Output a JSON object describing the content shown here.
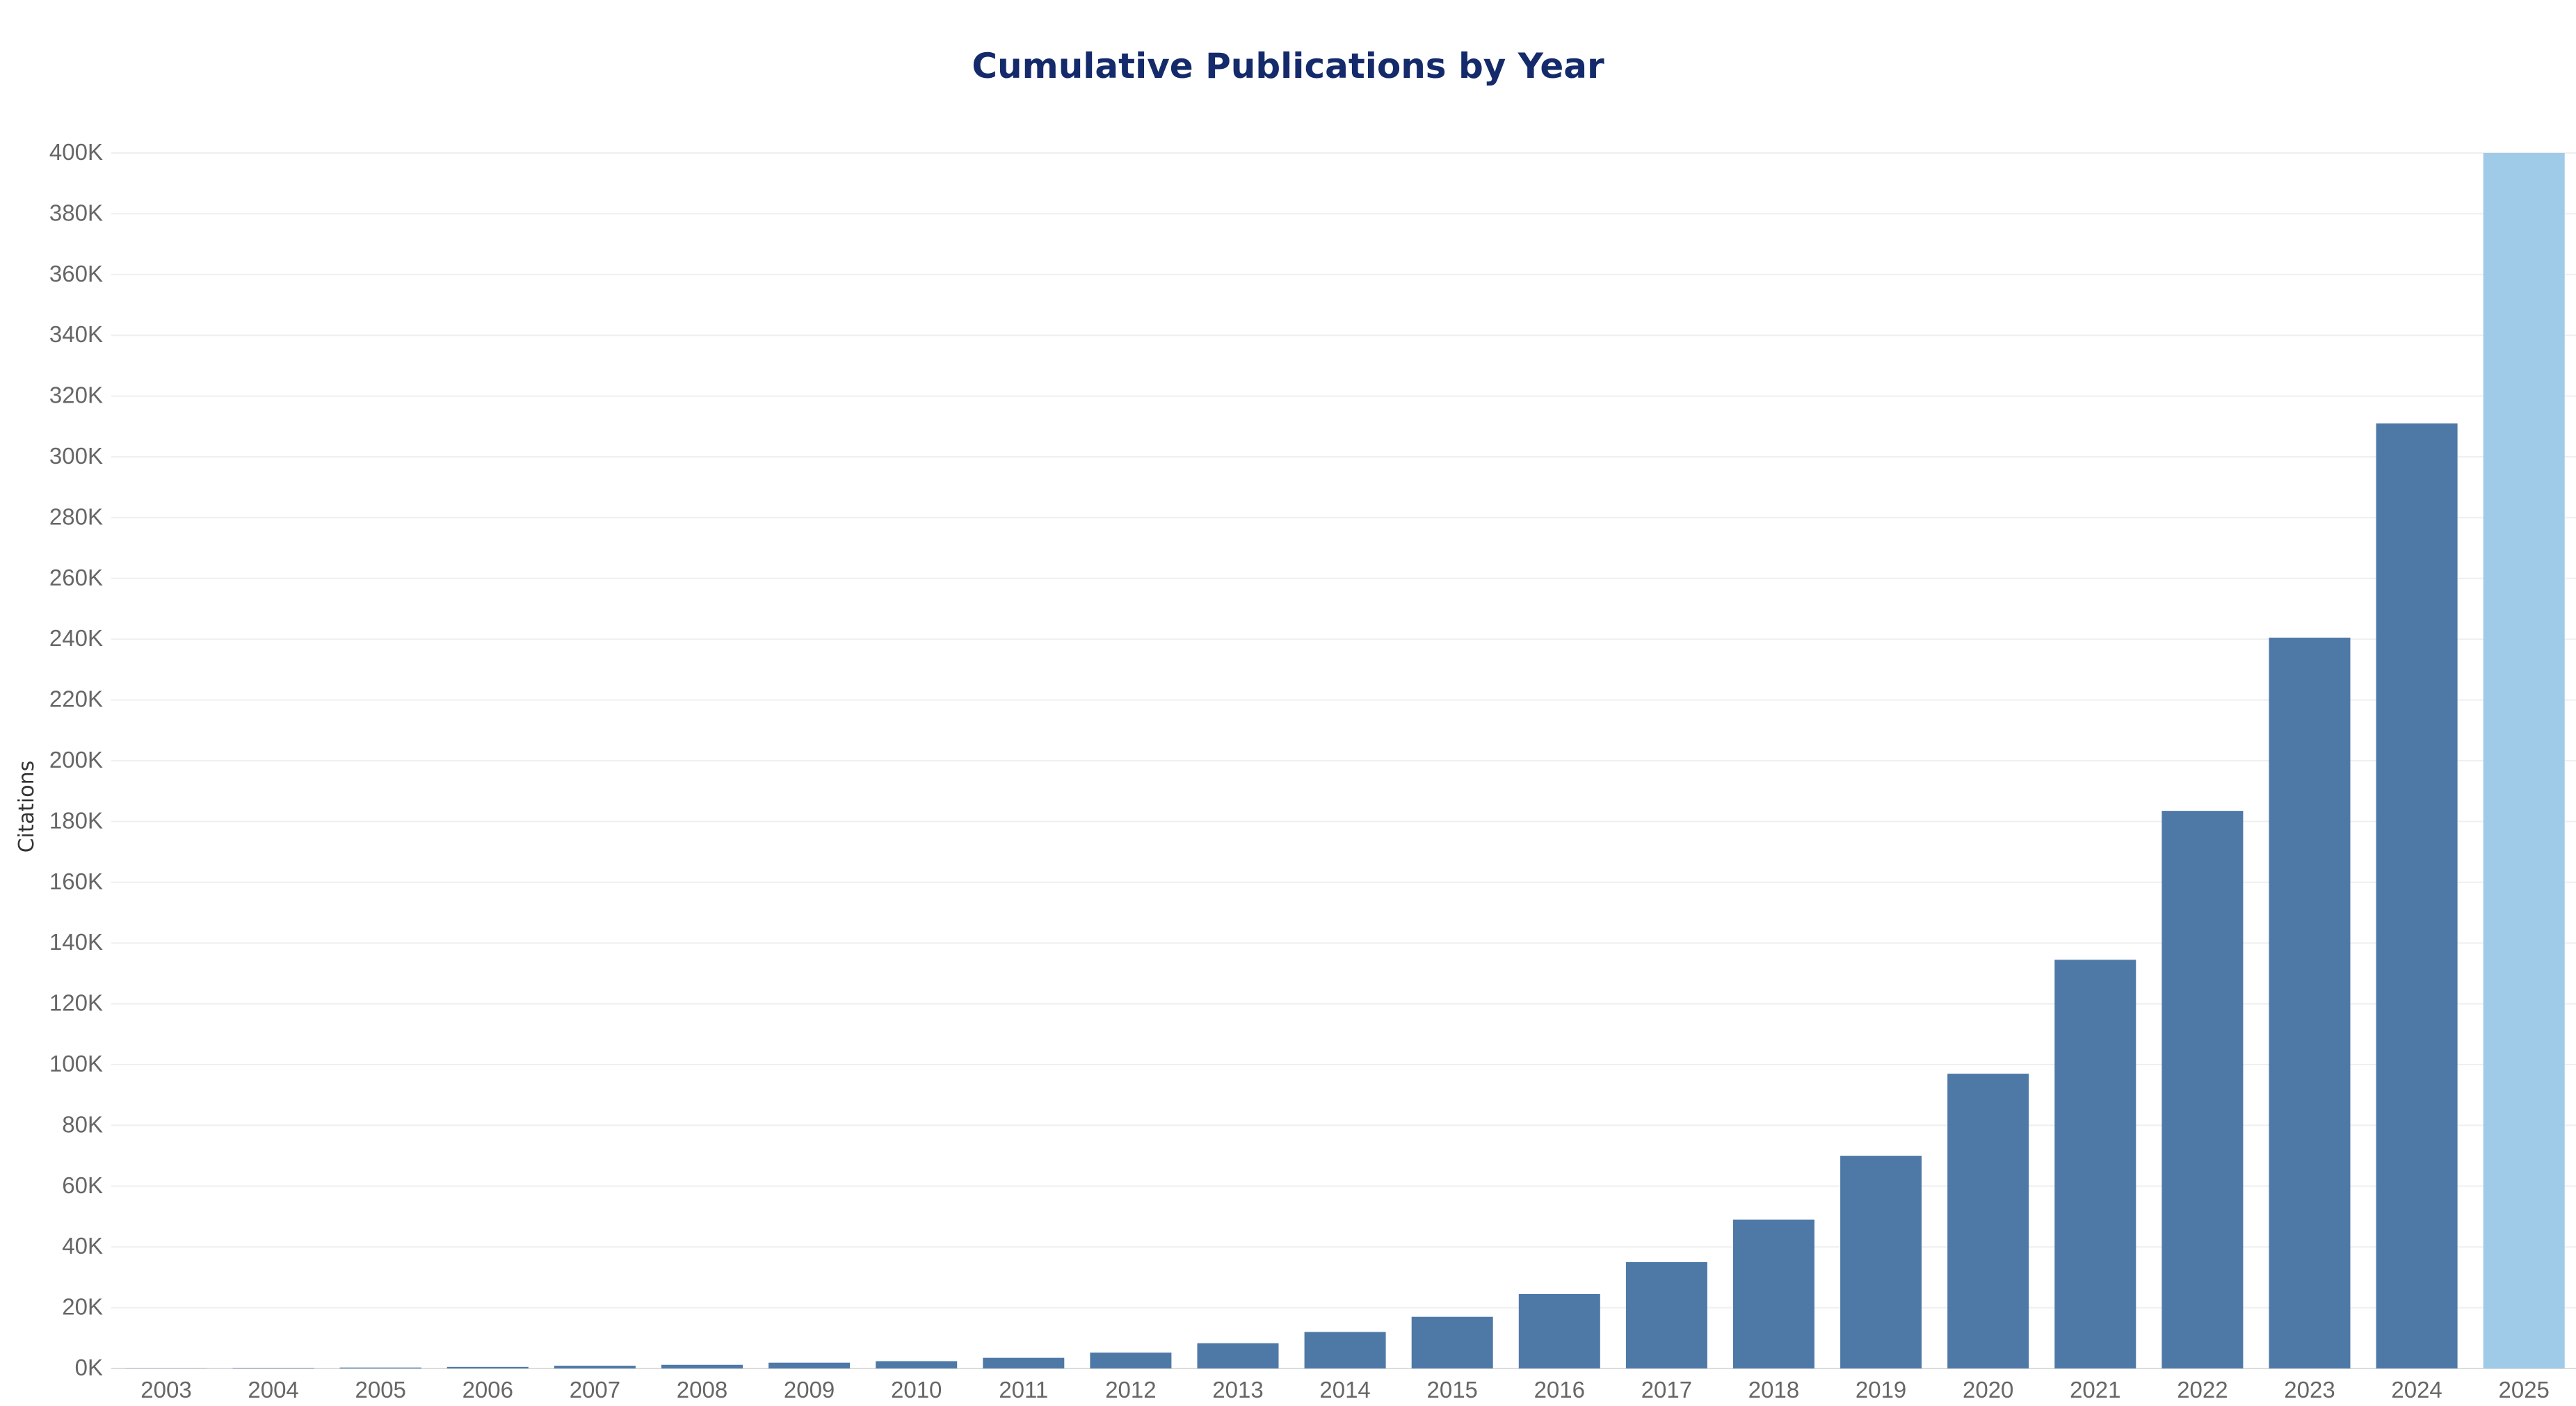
{
  "chart_data": {
    "type": "bar",
    "title": "Cumulative Publications by Year",
    "xlabel": "",
    "ylabel": "Citations",
    "categories": [
      "2003",
      "2004",
      "2005",
      "2006",
      "2007",
      "2008",
      "2009",
      "2010",
      "2011",
      "2012",
      "2013",
      "2014",
      "2015",
      "2016",
      "2017",
      "2018",
      "2019",
      "2020",
      "2021",
      "2022",
      "2023",
      "2024",
      "2025"
    ],
    "values": [
      50,
      150,
      300,
      500,
      900,
      1200,
      1900,
      2400,
      3500,
      5200,
      8300,
      12000,
      17000,
      24500,
      35000,
      49000,
      70000,
      97000,
      134500,
      183500,
      240500,
      311000,
      400000
    ],
    "ylim": [
      0,
      400000
    ],
    "yticks": [
      0,
      20000,
      40000,
      60000,
      80000,
      100000,
      120000,
      140000,
      160000,
      180000,
      200000,
      220000,
      240000,
      260000,
      280000,
      300000,
      320000,
      340000,
      360000,
      380000,
      400000
    ],
    "ytick_labels": [
      "0K",
      "20K",
      "40K",
      "60K",
      "80K",
      "100K",
      "120K",
      "140K",
      "160K",
      "180K",
      "200K",
      "220K",
      "240K",
      "260K",
      "280K",
      "300K",
      "320K",
      "340K",
      "360K",
      "380K",
      "400K"
    ],
    "grid": true,
    "legend": "none",
    "colors": {
      "bar": "#4e79a7",
      "highlight_bar": "#a0cbe8",
      "title": "#142a6b"
    },
    "highlight_category": "2025"
  }
}
